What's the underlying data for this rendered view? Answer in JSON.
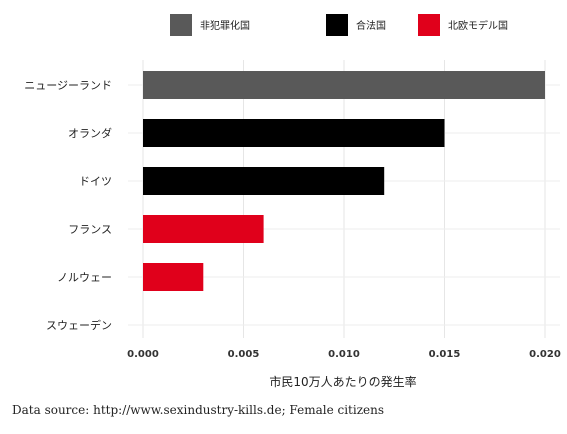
{
  "chart_data": {
    "type": "bar",
    "orientation": "horizontal",
    "categories": [
      "ニュージーランド",
      "オランダ",
      "ドイツ",
      "フランス",
      "ノルウェー",
      "スウェーデン"
    ],
    "values": [
      0.02,
      0.015,
      0.012,
      0.006,
      0.003,
      0.0
    ],
    "groups": [
      "非犯罪化国",
      "合法国",
      "合法国",
      "北欧モデル国",
      "北欧モデル国",
      "北欧モデル国"
    ],
    "legend": [
      {
        "name": "非犯罪化国",
        "color": "#595959"
      },
      {
        "name": "合法国",
        "color": "#000000"
      },
      {
        "name": "北欧モデル国",
        "color": "#e0001b"
      }
    ],
    "legend_position": "top",
    "xlabel": "市民10万人あたりの発生率",
    "ylabel": "",
    "xlim": [
      0,
      0.02
    ],
    "xticks": [
      "0.000",
      "0.005",
      "0.010",
      "0.015",
      "0.020"
    ],
    "grid": true
  },
  "source_note": "Data source: http://www.sexindustry-kills.de; Female citizens"
}
